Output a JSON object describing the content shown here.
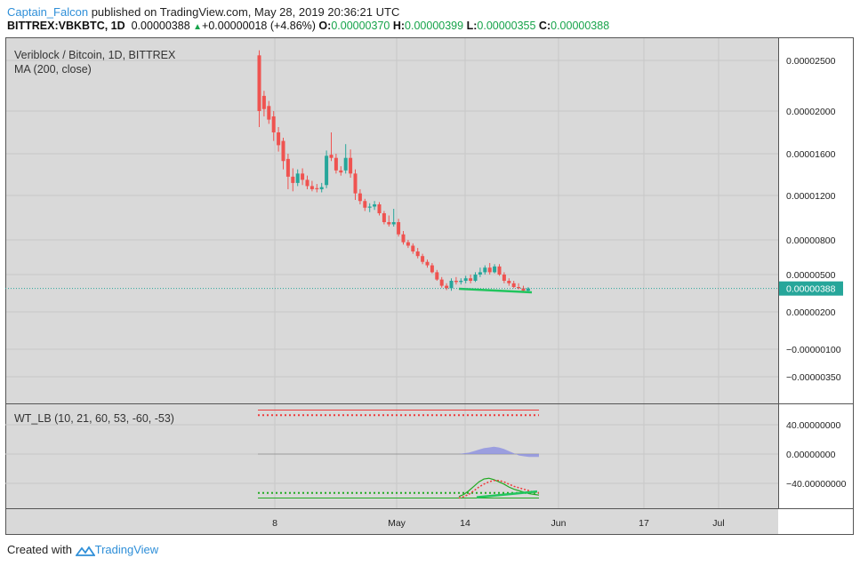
{
  "header": {
    "author": "Captain_Falcon",
    "published": "published on TradingView.com, May 28, 2019 20:36:21 UTC",
    "symbol": "BITTREX:VBKBTC, 1D",
    "price": "0.00000388",
    "change": "+0.00000018 (+4.86%)",
    "open_label": "O:",
    "open": "0.00000370",
    "high_label": "H:",
    "high": "0.00000399",
    "low_label": "L:",
    "low": "0.00000355",
    "close_label": "C:",
    "close": "0.00000388"
  },
  "footer": {
    "created_with": "Created with",
    "brand": "TradingView"
  },
  "colors": {
    "up": "#26a69a",
    "down": "#ef5350",
    "grid": "#c8c8c8",
    "bg": "#d9d9d9",
    "price_line": "#26a69a",
    "wt_red": "#ef3a3a",
    "wt_green": "#22aa22",
    "wt_fill": "#8b8fe0",
    "trend": "#22c55e"
  },
  "chart_data": [
    {
      "type": "candlestick",
      "title": "Veriblock / Bitcoin, 1D, BITTREX",
      "indicator": "MA (200, close)",
      "scale": "log",
      "y_ticks": [
        "0.00002500",
        "0.00002000",
        "0.00001600",
        "0.00001200",
        "0.00000800",
        "0.00000500",
        "0.00000200",
        "−0.00000100",
        "−0.00000350"
      ],
      "last_price_label": "0.00000388",
      "x_ticks": [
        "8",
        "May",
        "14",
        "Jun",
        "17",
        "Jul"
      ],
      "candles": [
        {
          "o": 25.5,
          "h": 26.0,
          "l": 18.5,
          "c": 20.0
        },
        {
          "o": 21.5,
          "h": 22.0,
          "l": 19.5,
          "c": 20.2
        },
        {
          "o": 20.5,
          "h": 21.0,
          "l": 18.8,
          "c": 19.2
        },
        {
          "o": 19.5,
          "h": 20.0,
          "l": 17.2,
          "c": 18.0
        },
        {
          "o": 18.0,
          "h": 18.5,
          "l": 16.2,
          "c": 16.8
        },
        {
          "o": 17.2,
          "h": 17.5,
          "l": 14.5,
          "c": 15.3
        },
        {
          "o": 15.5,
          "h": 16.0,
          "l": 12.6,
          "c": 13.8
        },
        {
          "o": 13.8,
          "h": 14.6,
          "l": 12.4,
          "c": 13.2
        },
        {
          "o": 13.2,
          "h": 14.5,
          "l": 12.9,
          "c": 14.1
        },
        {
          "o": 14.1,
          "h": 14.6,
          "l": 13.0,
          "c": 13.5
        },
        {
          "o": 13.5,
          "h": 13.9,
          "l": 12.6,
          "c": 12.9
        },
        {
          "o": 12.9,
          "h": 13.4,
          "l": 12.4,
          "c": 12.6
        },
        {
          "o": 12.7,
          "h": 13.1,
          "l": 12.3,
          "c": 12.6
        },
        {
          "o": 12.6,
          "h": 13.2,
          "l": 12.3,
          "c": 12.8
        },
        {
          "o": 13.0,
          "h": 16.3,
          "l": 12.7,
          "c": 15.8
        },
        {
          "o": 15.9,
          "h": 18.0,
          "l": 15.3,
          "c": 15.6
        },
        {
          "o": 15.6,
          "h": 16.0,
          "l": 14.1,
          "c": 14.4
        },
        {
          "o": 14.4,
          "h": 14.8,
          "l": 13.9,
          "c": 14.2
        },
        {
          "o": 14.4,
          "h": 16.9,
          "l": 14.1,
          "c": 15.6
        },
        {
          "o": 15.6,
          "h": 16.4,
          "l": 13.7,
          "c": 14.1
        },
        {
          "o": 14.1,
          "h": 14.5,
          "l": 11.6,
          "c": 12.2
        },
        {
          "o": 12.2,
          "h": 12.6,
          "l": 11.2,
          "c": 11.5
        },
        {
          "o": 11.5,
          "h": 11.7,
          "l": 10.6,
          "c": 10.9
        },
        {
          "o": 10.9,
          "h": 11.3,
          "l": 10.5,
          "c": 11.0
        },
        {
          "o": 11.0,
          "h": 11.5,
          "l": 10.7,
          "c": 11.2
        },
        {
          "o": 11.2,
          "h": 11.4,
          "l": 10.2,
          "c": 10.4
        },
        {
          "o": 10.4,
          "h": 10.6,
          "l": 9.4,
          "c": 9.6
        },
        {
          "o": 9.6,
          "h": 10.2,
          "l": 9.2,
          "c": 9.4
        },
        {
          "o": 9.4,
          "h": 10.8,
          "l": 9.2,
          "c": 9.6
        },
        {
          "o": 9.6,
          "h": 9.9,
          "l": 8.3,
          "c": 8.5
        },
        {
          "o": 8.5,
          "h": 8.8,
          "l": 7.6,
          "c": 7.8
        },
        {
          "o": 7.8,
          "h": 8.0,
          "l": 7.3,
          "c": 7.5
        },
        {
          "o": 7.5,
          "h": 7.7,
          "l": 6.8,
          "c": 7.0
        },
        {
          "o": 7.0,
          "h": 7.3,
          "l": 6.4,
          "c": 6.6
        },
        {
          "o": 6.6,
          "h": 6.8,
          "l": 5.9,
          "c": 6.1
        },
        {
          "o": 6.1,
          "h": 6.3,
          "l": 5.6,
          "c": 5.8
        },
        {
          "o": 5.8,
          "h": 6.0,
          "l": 5.1,
          "c": 5.2
        },
        {
          "o": 5.2,
          "h": 5.4,
          "l": 4.5,
          "c": 4.6
        },
        {
          "o": 4.6,
          "h": 4.8,
          "l": 3.95,
          "c": 4.1
        },
        {
          "o": 4.1,
          "h": 4.3,
          "l": 3.75,
          "c": 3.9
        },
        {
          "o": 3.9,
          "h": 4.7,
          "l": 3.7,
          "c": 4.5
        },
        {
          "o": 4.5,
          "h": 4.8,
          "l": 4.2,
          "c": 4.4
        },
        {
          "o": 4.4,
          "h": 4.7,
          "l": 4.2,
          "c": 4.5
        },
        {
          "o": 4.5,
          "h": 4.9,
          "l": 4.3,
          "c": 4.7
        },
        {
          "o": 4.7,
          "h": 5.0,
          "l": 4.3,
          "c": 4.5
        },
        {
          "o": 4.5,
          "h": 5.2,
          "l": 4.4,
          "c": 5.0
        },
        {
          "o": 5.0,
          "h": 5.6,
          "l": 4.8,
          "c": 5.2
        },
        {
          "o": 5.2,
          "h": 5.8,
          "l": 5.0,
          "c": 5.6
        },
        {
          "o": 5.6,
          "h": 6.0,
          "l": 5.0,
          "c": 5.2
        },
        {
          "o": 5.2,
          "h": 5.9,
          "l": 5.1,
          "c": 5.7
        },
        {
          "o": 5.7,
          "h": 5.9,
          "l": 4.9,
          "c": 5.0
        },
        {
          "o": 5.0,
          "h": 5.2,
          "l": 4.3,
          "c": 4.5
        },
        {
          "o": 4.5,
          "h": 4.7,
          "l": 4.1,
          "c": 4.3
        },
        {
          "o": 4.3,
          "h": 4.5,
          "l": 3.9,
          "c": 4.0
        },
        {
          "o": 4.0,
          "h": 4.3,
          "l": 3.8,
          "c": 3.9
        },
        {
          "o": 3.9,
          "h": 4.1,
          "l": 3.55,
          "c": 3.7
        },
        {
          "o": 3.7,
          "h": 3.99,
          "l": 3.55,
          "c": 3.88
        }
      ]
    },
    {
      "type": "line",
      "title": "WT_LB (10, 21, 60, 53, -60, -53)",
      "y_ticks": [
        "40.00000000",
        "0.00000000",
        "−40.00000000"
      ],
      "ylim": [
        -60,
        60
      ],
      "levels": [
        60,
        53,
        -53,
        -60
      ],
      "wt1": [
        -58,
        -55,
        -50,
        -44,
        -38,
        -34,
        -33,
        -35,
        -38,
        -41,
        -45,
        -48,
        -50,
        -52,
        -54,
        -55,
        -56
      ],
      "wt2": [
        -60,
        -58,
        -55,
        -50,
        -45,
        -41,
        -38,
        -36,
        -36,
        -38,
        -41,
        -44,
        -46,
        -48,
        -50,
        -52,
        -53
      ],
      "histogram": [
        0,
        1,
        2,
        4,
        6,
        8,
        9,
        10,
        9,
        7,
        4,
        1,
        -2,
        -3,
        -4,
        -4,
        -4
      ]
    }
  ]
}
